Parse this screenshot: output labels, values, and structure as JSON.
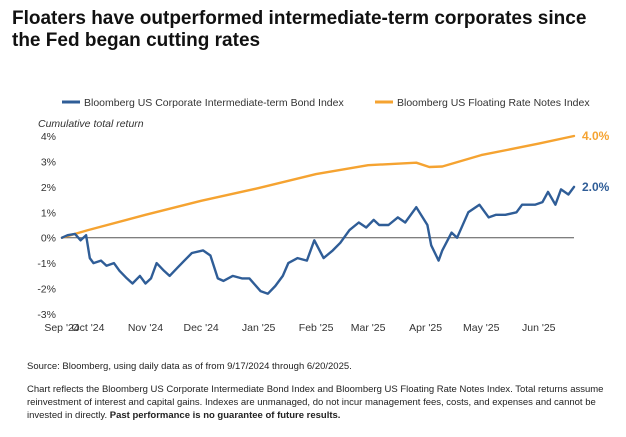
{
  "title": "Floaters have outperformed intermediate-term corporates since the Fed began cutting rates",
  "source": "Source: Bloomberg, using daily data as of from 9/17/2024 through 6/20/2025.",
  "notes_text": "Chart reflects the Bloomberg US Corporate Intermediate Bond Index and Bloomberg US Floating Rate Notes Index. Total returns assume reinvestment of interest and capital gains. Indexes are unmanaged, do not incur management fees, costs, and expenses and cannot be invested in directly.",
  "notes_bold": "Past performance is no guarantee of future results.",
  "colors": {
    "blue": "#2f5d97",
    "orange": "#f5a331",
    "zero_line": "#555555",
    "grid": "#e3e3e3"
  },
  "chart_data": {
    "type": "line",
    "ylabel": "Cumulative total return",
    "ylim": [
      -3,
      4
    ],
    "yticks": [
      -3,
      -2,
      -1,
      0,
      1,
      2,
      3,
      4
    ],
    "ytick_labels": [
      "-3%",
      "-2%",
      "-1%",
      "0%",
      "1%",
      "2%",
      "3%",
      "4%"
    ],
    "xlim": [
      "2024-09-17",
      "2025-06-20"
    ],
    "xticks": [
      "2024-09-17",
      "2024-10-01",
      "2024-11-01",
      "2024-12-01",
      "2025-01-01",
      "2025-02-01",
      "2025-03-01",
      "2025-04-01",
      "2025-05-01",
      "2025-06-01"
    ],
    "xtick_labels": [
      "Sep '24",
      "Oct '24",
      "Nov '24",
      "Dec '24",
      "Jan '25",
      "Feb '25",
      "Mar '25",
      "Apr '25",
      "May '25",
      "Jun '25"
    ],
    "grid": false,
    "legend_position": "top",
    "series": [
      {
        "name": "Bloomberg US Corporate Intermediate-term Bond Index",
        "color": "#2f5d97",
        "end_label": "2.0%",
        "x": [
          "2024-09-17",
          "2024-09-20",
          "2024-09-24",
          "2024-09-27",
          "2024-09-30",
          "2024-10-02",
          "2024-10-04",
          "2024-10-08",
          "2024-10-11",
          "2024-10-15",
          "2024-10-18",
          "2024-10-22",
          "2024-10-25",
          "2024-10-29",
          "2024-11-01",
          "2024-11-04",
          "2024-11-07",
          "2024-11-11",
          "2024-11-14",
          "2024-11-18",
          "2024-11-22",
          "2024-11-26",
          "2024-12-02",
          "2024-12-06",
          "2024-12-10",
          "2024-12-13",
          "2024-12-18",
          "2024-12-23",
          "2024-12-27",
          "2025-01-02",
          "2025-01-06",
          "2025-01-10",
          "2025-01-14",
          "2025-01-17",
          "2025-01-22",
          "2025-01-27",
          "2025-01-31",
          "2025-02-05",
          "2025-02-10",
          "2025-02-14",
          "2025-02-19",
          "2025-02-24",
          "2025-02-28",
          "2025-03-04",
          "2025-03-07",
          "2025-03-12",
          "2025-03-17",
          "2025-03-21",
          "2025-03-27",
          "2025-04-02",
          "2025-04-04",
          "2025-04-08",
          "2025-04-10",
          "2025-04-15",
          "2025-04-18",
          "2025-04-24",
          "2025-04-30",
          "2025-05-05",
          "2025-05-09",
          "2025-05-14",
          "2025-05-20",
          "2025-05-23",
          "2025-05-30",
          "2025-06-03",
          "2025-06-06",
          "2025-06-10",
          "2025-06-13",
          "2025-06-17",
          "2025-06-20"
        ],
        "y": [
          0.0,
          0.1,
          0.15,
          -0.1,
          0.1,
          -0.8,
          -1.0,
          -0.9,
          -1.1,
          -1.0,
          -1.3,
          -1.6,
          -1.8,
          -1.5,
          -1.8,
          -1.6,
          -1.0,
          -1.3,
          -1.5,
          -1.2,
          -0.9,
          -0.6,
          -0.5,
          -0.7,
          -1.6,
          -1.7,
          -1.5,
          -1.6,
          -1.6,
          -2.1,
          -2.2,
          -1.9,
          -1.5,
          -1.0,
          -0.8,
          -0.9,
          -0.1,
          -0.8,
          -0.5,
          -0.2,
          0.3,
          0.6,
          0.4,
          0.7,
          0.5,
          0.5,
          0.8,
          0.6,
          1.2,
          0.5,
          -0.3,
          -0.9,
          -0.5,
          0.2,
          0.0,
          1.0,
          1.3,
          0.8,
          0.9,
          0.9,
          1.0,
          1.3,
          1.3,
          1.4,
          1.8,
          1.3,
          1.9,
          1.7,
          2.0
        ]
      },
      {
        "name": "Bloomberg US Floating Rate Notes Index",
        "color": "#f5a331",
        "end_label": "4.0%",
        "x": [
          "2024-09-17",
          "2024-10-01",
          "2024-11-01",
          "2024-12-01",
          "2025-01-01",
          "2025-02-01",
          "2025-03-01",
          "2025-03-27",
          "2025-04-03",
          "2025-04-10",
          "2025-05-01",
          "2025-06-01",
          "2025-06-20"
        ],
        "y": [
          0.0,
          0.3,
          0.9,
          1.45,
          1.95,
          2.5,
          2.85,
          2.95,
          2.78,
          2.8,
          3.25,
          3.7,
          4.0
        ]
      }
    ]
  }
}
